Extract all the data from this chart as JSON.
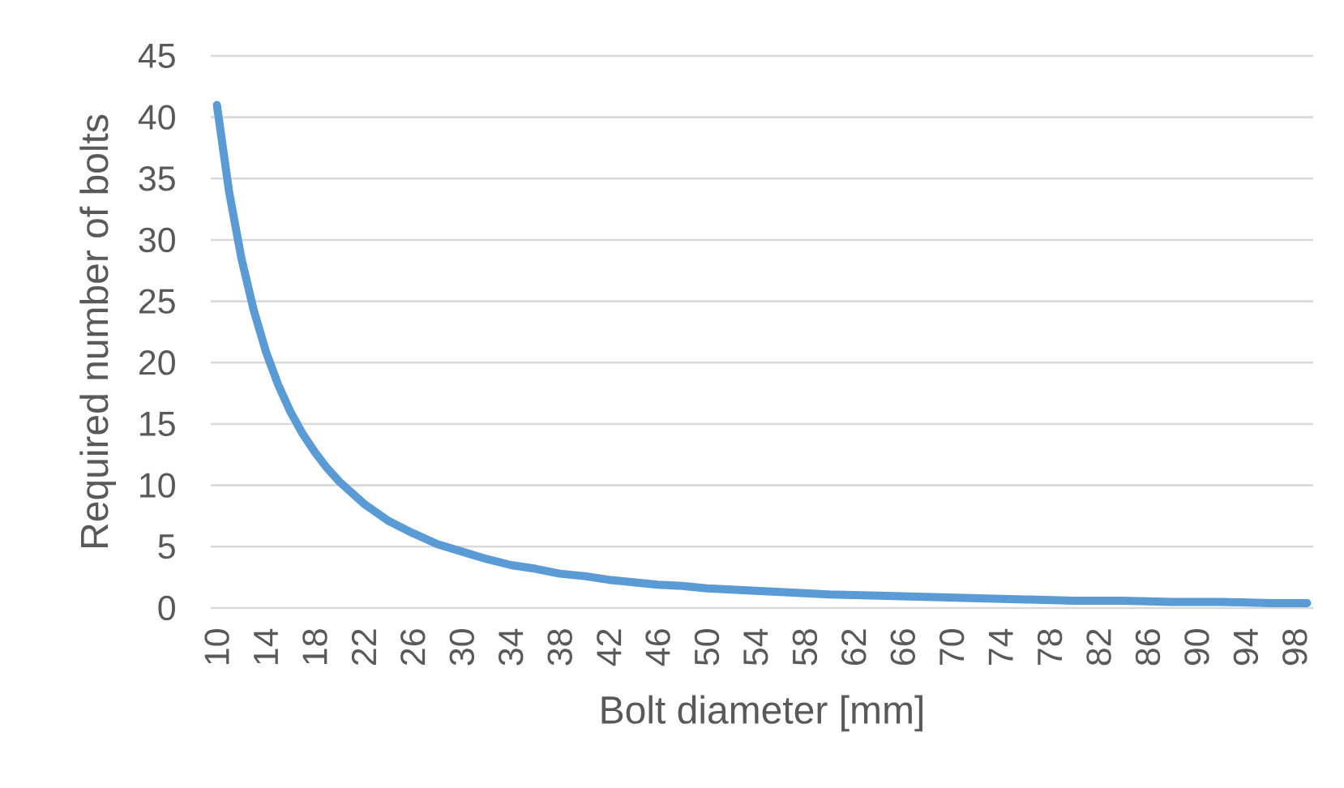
{
  "chart_data": {
    "type": "line",
    "xlabel": "Bolt diameter [mm]",
    "ylabel": "Required number of bolts",
    "x": [
      10,
      11,
      12,
      13,
      14,
      15,
      16,
      17,
      18,
      19,
      20,
      22,
      24,
      26,
      28,
      30,
      32,
      34,
      36,
      38,
      40,
      42,
      44,
      46,
      48,
      50,
      52,
      54,
      56,
      58,
      60,
      64,
      68,
      72,
      76,
      80,
      84,
      88,
      92,
      96,
      99
    ],
    "values": [
      41.0,
      33.9,
      28.5,
      24.3,
      20.9,
      18.2,
      16.0,
      14.2,
      12.7,
      11.4,
      10.3,
      8.5,
      7.1,
      6.1,
      5.2,
      4.6,
      4.0,
      3.5,
      3.2,
      2.8,
      2.6,
      2.3,
      2.1,
      1.9,
      1.8,
      1.6,
      1.5,
      1.4,
      1.3,
      1.2,
      1.1,
      1.0,
      0.9,
      0.8,
      0.7,
      0.6,
      0.6,
      0.5,
      0.5,
      0.4,
      0.4
    ],
    "color": "#5b9bd5",
    "xlim": [
      9.5,
      99.5
    ],
    "ylim": [
      0,
      45
    ],
    "xticks": [
      10,
      14,
      18,
      22,
      26,
      30,
      34,
      38,
      42,
      46,
      50,
      54,
      58,
      62,
      66,
      70,
      74,
      78,
      82,
      86,
      90,
      94,
      98
    ],
    "yticks": [
      0,
      5,
      10,
      15,
      20,
      25,
      30,
      35,
      40,
      45
    ],
    "grid": "y"
  }
}
